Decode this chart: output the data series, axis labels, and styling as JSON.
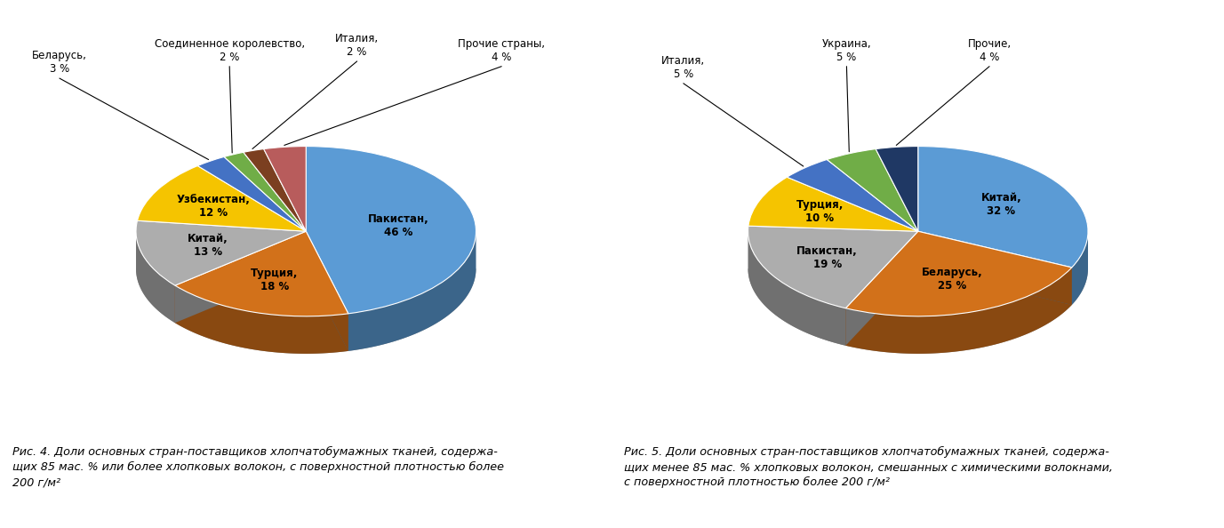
{
  "chart1": {
    "values": [
      46,
      18,
      13,
      12,
      3,
      2,
      2,
      4
    ],
    "colors": [
      "#5B9BD5",
      "#D2711A",
      "#ADADAD",
      "#F5C400",
      "#4472C4",
      "#70AD47",
      "#7B3F20",
      "#B85C5C"
    ],
    "inner_labels": [
      [
        0,
        "Пакистан,\n46 %",
        0.55
      ],
      [
        1,
        "Турция,\n18 %",
        0.6
      ],
      [
        2,
        "Китай,\n13 %",
        0.6
      ],
      [
        3,
        "Узбекистан,\n12 %",
        0.62
      ]
    ],
    "outer_labels": [
      [
        4,
        "Беларусь,\n3 %",
        [
          -1.45,
          0.78
        ]
      ],
      [
        5,
        "Соединенное королевство,\n2 %",
        [
          -0.45,
          0.85
        ]
      ],
      [
        6,
        "Италия,\n2 %",
        [
          0.3,
          0.88
        ]
      ],
      [
        7,
        "Прочие страны,\n4 %",
        [
          1.15,
          0.85
        ]
      ]
    ],
    "caption": "Рис. 4. Доли основных стран-поставщиков хлопчатобумажных тканей, содержа-\nщих 85 мас. % или более хлопковых волокон, с поверхностной плотностью более\n200 г/м²"
  },
  "chart2": {
    "values": [
      32,
      25,
      19,
      10,
      5,
      5,
      4
    ],
    "colors": [
      "#5B9BD5",
      "#D2711A",
      "#ADADAD",
      "#F5C400",
      "#4472C4",
      "#70AD47",
      "#1F3864"
    ],
    "inner_labels": [
      [
        0,
        "Китай,\n32 %",
        0.58
      ],
      [
        1,
        "Беларусь,\n25 %",
        0.6
      ],
      [
        2,
        "Пакистан,\n19 %",
        0.62
      ],
      [
        3,
        "Турция,\n10 %",
        0.62
      ]
    ],
    "outer_labels": [
      [
        4,
        "Италия,\n5 %",
        [
          -1.38,
          0.75
        ]
      ],
      [
        5,
        "Украина,\n5 %",
        [
          -0.42,
          0.85
        ]
      ],
      [
        6,
        "Прочие,\n4 %",
        [
          0.42,
          0.85
        ]
      ]
    ],
    "caption": "Рис. 5. Доли основных стран-поставщиков хлопчатобумажных тканей, содержа-\nщих менее 85 мас. % хлопковых волокон, смешанных с химическими волокнами,\nс поверхностной плотностью более 200 г/м²"
  },
  "fontsize_inner": 8.5,
  "fontsize_outer": 8.5,
  "fontsize_caption": 9.2,
  "yscale": 0.5,
  "depth": 0.22
}
